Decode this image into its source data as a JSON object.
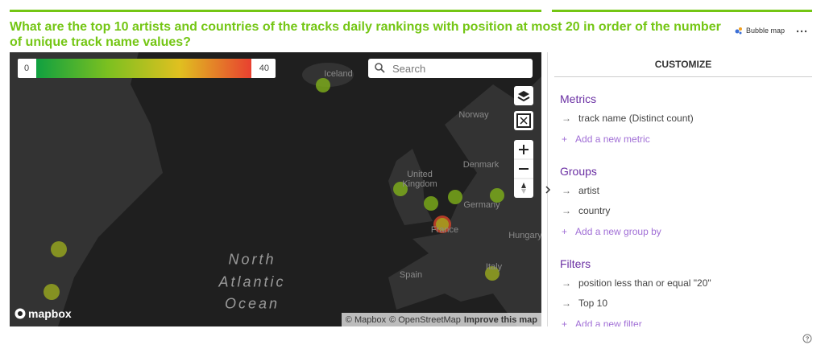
{
  "header": {
    "title": "What are the top 10 artists and countries of the tracks daily rankings with position at most 20 in order of the number of unique track name values?",
    "chart_type": "Bubble map"
  },
  "map": {
    "legend": {
      "min": 0,
      "max": 40
    },
    "search_placeholder": "Search",
    "labels": [
      "Iceland",
      "Norway",
      "Denmark",
      "United Kingdom",
      "Germany",
      "France",
      "Hungary",
      "Spain",
      "Italy"
    ],
    "ocean_label": [
      "North",
      "Atlantic",
      "Ocean"
    ],
    "logo": "mapbox",
    "attribution": [
      "© Mapbox",
      "© OpenStreetMap",
      "Improve this map"
    ]
  },
  "customize": {
    "title": "CUSTOMIZE",
    "sections": [
      {
        "title": "Metrics",
        "items": [
          "track name (Distinct count)"
        ],
        "add": "Add a new metric"
      },
      {
        "title": "Groups",
        "items": [
          "artist",
          "country"
        ],
        "add": "Add a new group by"
      },
      {
        "title": "Filters",
        "items": [
          "position less than or equal \"20\"",
          "Top 10"
        ],
        "add": "Add a new filter"
      }
    ]
  }
}
